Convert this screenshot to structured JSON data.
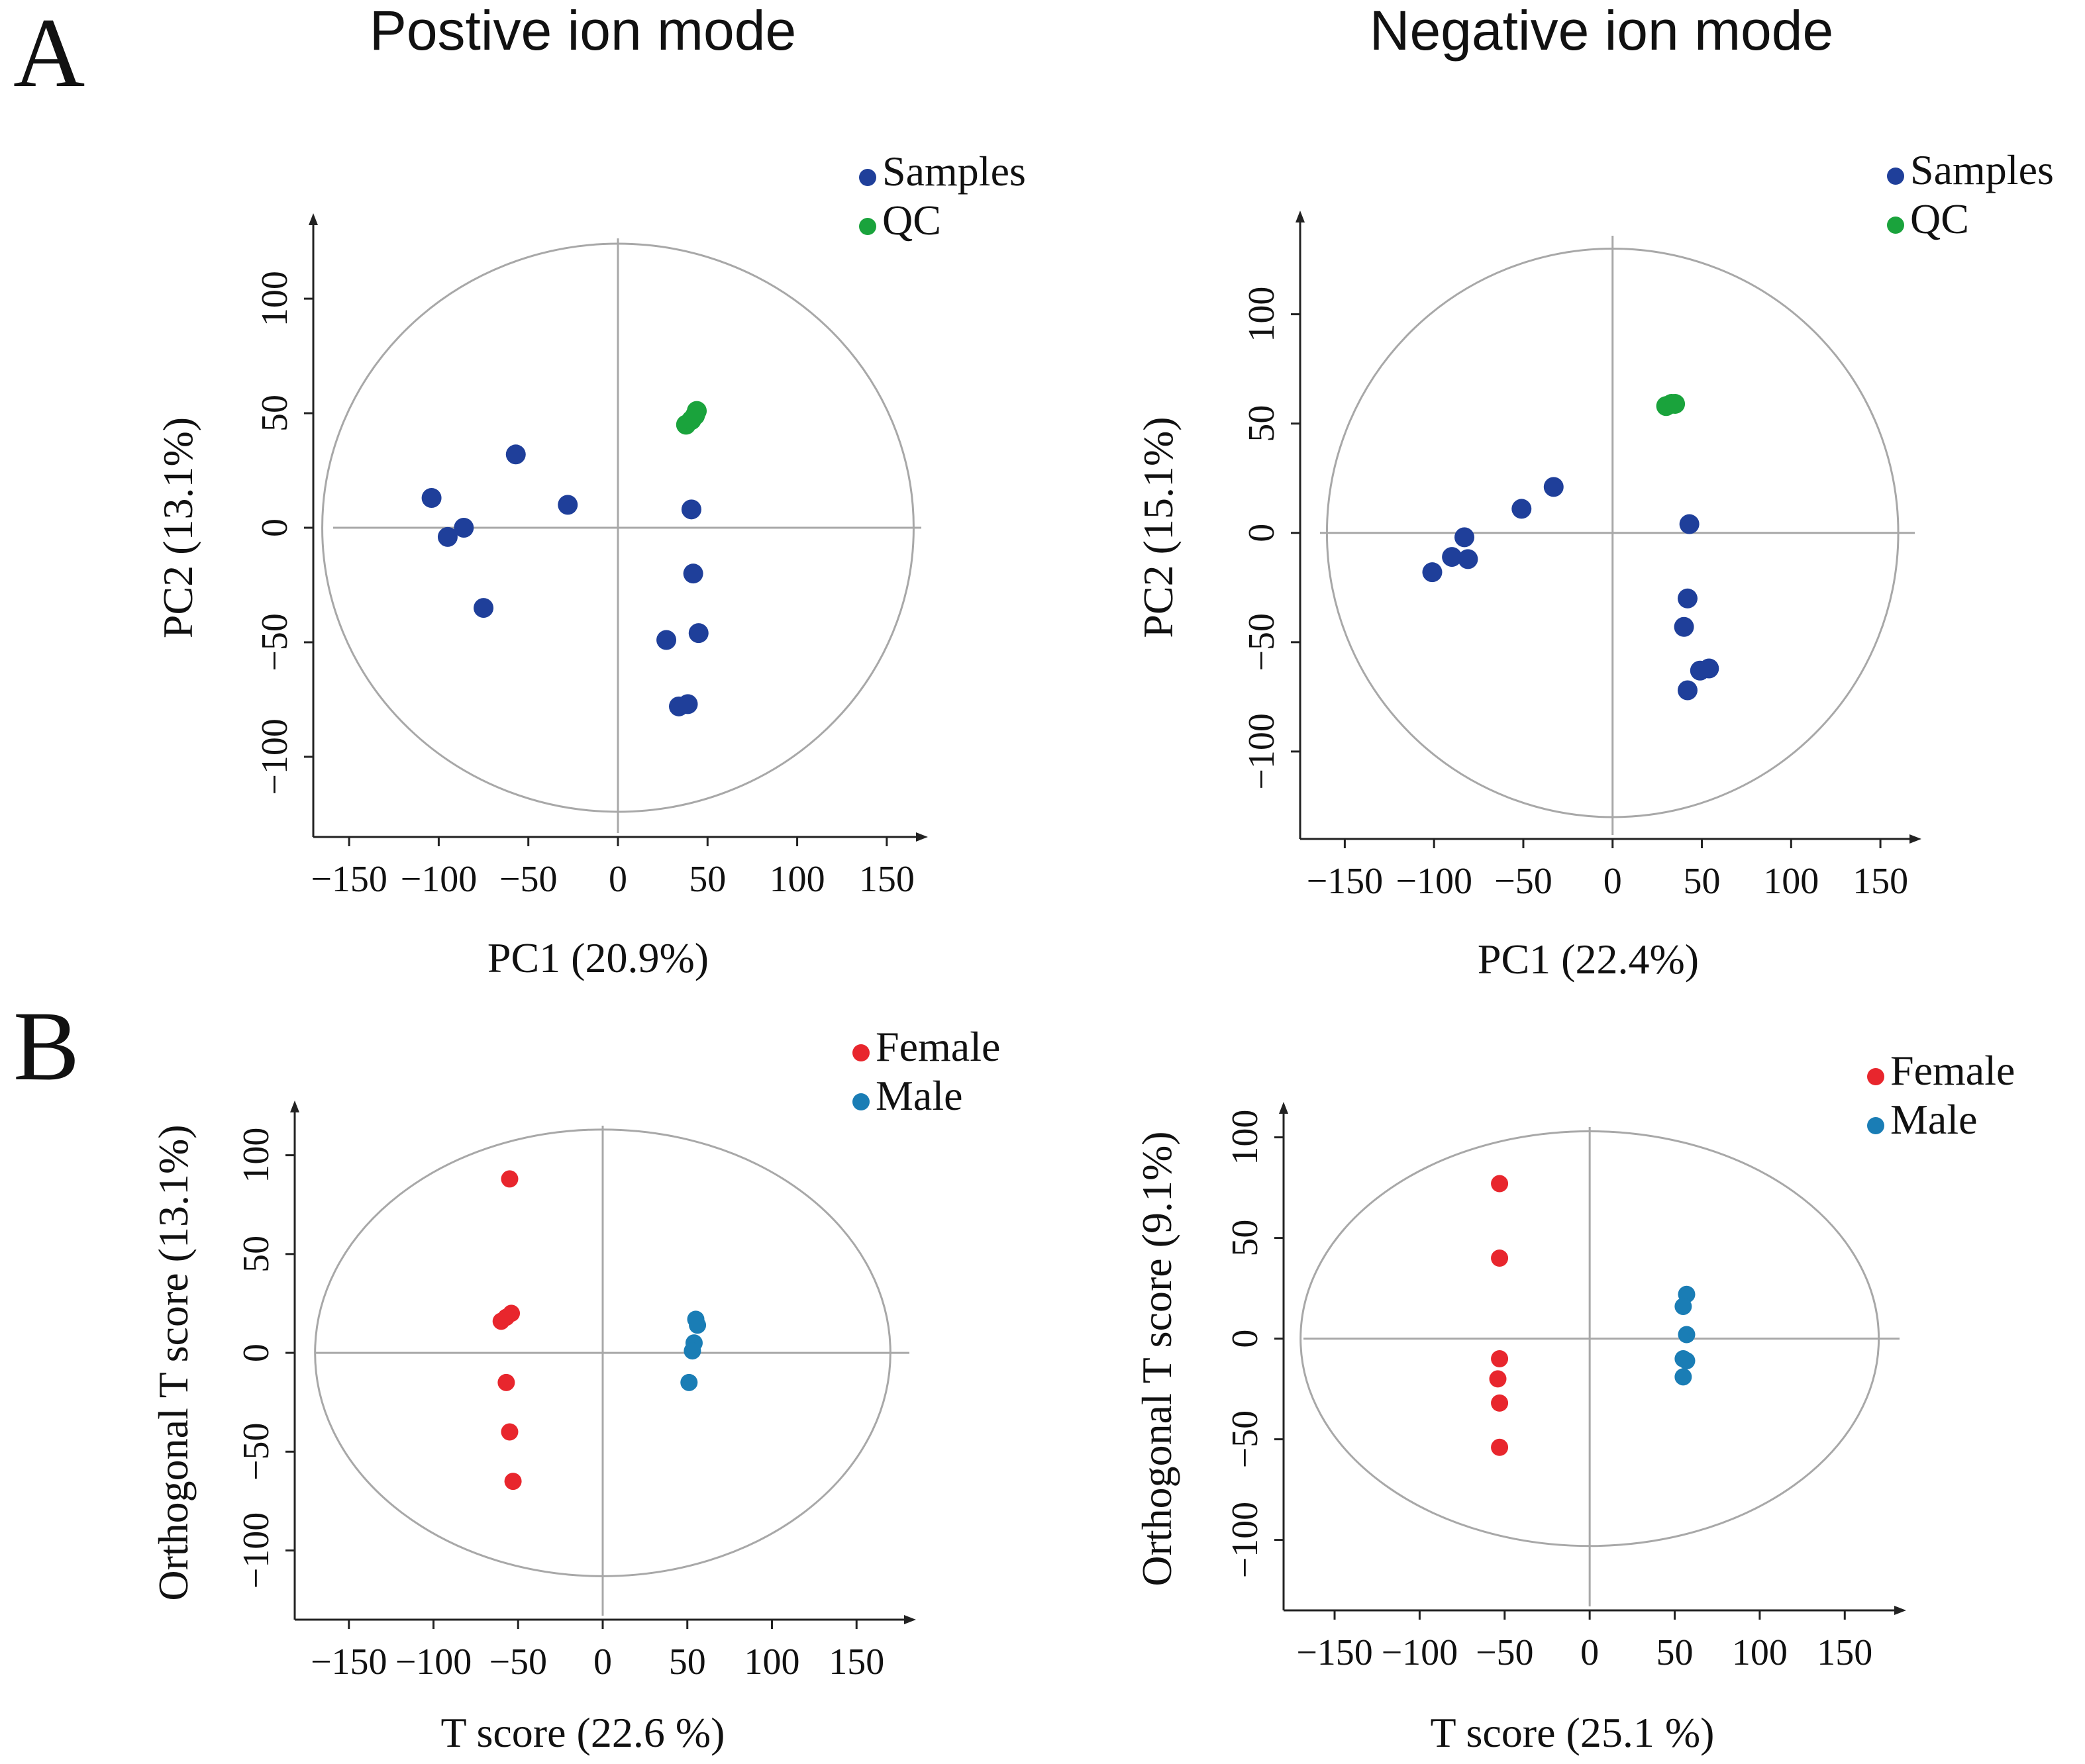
{
  "figure": {
    "panel_A_letter": "A",
    "panel_B_letter": "B",
    "title_left": "Postive ion mode",
    "title_right": "Negative ion mode"
  },
  "colors": {
    "samples": "#1f3f9a",
    "qc": "#1aa33c",
    "female": "#e8262d",
    "male": "#1a7db5",
    "axis": "#222222",
    "guide": "#a8a8a8"
  },
  "chart_data": [
    {
      "id": "A-pos",
      "type": "scatter",
      "xlabel": "PC1 (20.9%)",
      "ylabel": "PC2 (13.1%)",
      "xlim": [
        -170,
        170
      ],
      "ylim": [
        -135,
        135
      ],
      "xticks": [
        -150,
        -100,
        -50,
        0,
        50,
        100,
        150
      ],
      "xtick_labels": [
        "−150",
        "−100",
        "−50",
        "0",
        "50",
        "100",
        "150"
      ],
      "yticks": [
        -100,
        -50,
        0,
        50,
        100
      ],
      "ytick_labels": [
        "−100",
        "−50",
        "0",
        "50",
        "100"
      ],
      "ellipse": {
        "rx": 165,
        "ry": 124
      },
      "legend": {
        "position": "top-right",
        "entries": [
          "Samples",
          "QC"
        ]
      },
      "series": [
        {
          "name": "Samples",
          "color_key": "samples",
          "points": [
            [
              -104,
              13
            ],
            [
              -57,
              32
            ],
            [
              -28,
              10
            ],
            [
              -86,
              0
            ],
            [
              -95,
              -4
            ],
            [
              -75,
              -35
            ],
            [
              41,
              8
            ],
            [
              42,
              -20
            ],
            [
              45,
              -46
            ],
            [
              27,
              -49
            ],
            [
              34,
              -78
            ],
            [
              39,
              -77
            ]
          ]
        },
        {
          "name": "QC",
          "color_key": "qc",
          "points": [
            [
              38,
              45
            ],
            [
              41,
              47
            ],
            [
              43,
              49
            ],
            [
              44,
              51
            ]
          ]
        }
      ]
    },
    {
      "id": "A-neg",
      "type": "scatter",
      "xlabel": "PC1 (22.4%)",
      "ylabel": "PC2 (15.1%)",
      "xlim": [
        -175,
        170
      ],
      "ylim": [
        -140,
        145
      ],
      "xticks": [
        -150,
        -100,
        -50,
        0,
        50,
        100,
        150
      ],
      "xtick_labels": [
        "−150",
        "−100",
        "−50",
        "0",
        "50",
        "100",
        "150"
      ],
      "yticks": [
        -100,
        -50,
        0,
        50,
        100
      ],
      "ytick_labels": [
        "−100",
        "−50",
        "0",
        "50",
        "100"
      ],
      "ellipse": {
        "rx": 160,
        "ry": 130
      },
      "legend": {
        "position": "top-right",
        "entries": [
          "Samples",
          "QC"
        ]
      },
      "series": [
        {
          "name": "Samples",
          "color_key": "samples",
          "points": [
            [
              -101,
              -18
            ],
            [
              -90,
              -11
            ],
            [
              -81,
              -12
            ],
            [
              -83,
              -2
            ],
            [
              -51,
              11
            ],
            [
              -33,
              21
            ],
            [
              43,
              4
            ],
            [
              42,
              -30
            ],
            [
              40,
              -43
            ],
            [
              49,
              -63
            ],
            [
              54,
              -62
            ],
            [
              42,
              -72
            ]
          ]
        },
        {
          "name": "QC",
          "color_key": "qc",
          "points": [
            [
              30,
              58
            ],
            [
              33,
              59
            ],
            [
              35,
              59
            ]
          ]
        }
      ]
    },
    {
      "id": "B-pos",
      "type": "scatter",
      "xlabel": "T score (22.6 %)",
      "ylabel": "Orthogonal T score (13.1%)",
      "xlim": [
        -182,
        182
      ],
      "ylim": [
        -135,
        125
      ],
      "xticks": [
        -150,
        -100,
        -50,
        0,
        50,
        100,
        150
      ],
      "xtick_labels": [
        "−150",
        "−100",
        "−50",
        "0",
        "50",
        "100",
        "150"
      ],
      "yticks": [
        -100,
        -50,
        0,
        50,
        100
      ],
      "ytick_labels": [
        "−100",
        "−50",
        "0",
        "50",
        "100"
      ],
      "ellipse": {
        "rx": 170,
        "ry": 113
      },
      "legend": {
        "position": "top-right",
        "entries": [
          "Female",
          "Male"
        ]
      },
      "series": [
        {
          "name": "Female",
          "color_key": "female",
          "points": [
            [
              -55,
              88
            ],
            [
              -54,
              20
            ],
            [
              -57,
              18
            ],
            [
              -60,
              16
            ],
            [
              -57,
              -15
            ],
            [
              -55,
              -40
            ],
            [
              -53,
              -65
            ]
          ]
        },
        {
          "name": "Male",
          "color_key": "male",
          "points": [
            [
              55,
              17
            ],
            [
              56,
              14
            ],
            [
              54,
              5
            ],
            [
              53,
              1
            ],
            [
              51,
              -15
            ]
          ]
        }
      ]
    },
    {
      "id": "B-neg",
      "type": "scatter",
      "xlabel": "T score (25.1 %)",
      "ylabel": "Orthogonal T score (9.1%)",
      "xlim": [
        -180,
        183
      ],
      "ylim": [
        -135,
        115
      ],
      "xticks": [
        -150,
        -100,
        -50,
        0,
        50,
        100,
        150
      ],
      "xtick_labels": [
        "−150",
        "−100",
        "−50",
        "0",
        "50",
        "100",
        "150"
      ],
      "yticks": [
        -100,
        -50,
        0,
        50,
        100
      ],
      "ytick_labels": [
        "−100",
        "−50",
        "0",
        "50",
        "100"
      ],
      "ellipse": {
        "rx": 170,
        "ry": 103
      },
      "legend": {
        "position": "top-right",
        "entries": [
          "Female",
          "Male"
        ]
      },
      "series": [
        {
          "name": "Female",
          "color_key": "female",
          "points": [
            [
              -53,
              77
            ],
            [
              -53,
              40
            ],
            [
              -53,
              -10
            ],
            [
              -54,
              -20
            ],
            [
              -53,
              -32
            ],
            [
              -53,
              -54
            ]
          ]
        },
        {
          "name": "Male",
          "color_key": "male",
          "points": [
            [
              57,
              22
            ],
            [
              55,
              16
            ],
            [
              57,
              2
            ],
            [
              55,
              -10
            ],
            [
              57,
              -11
            ],
            [
              55,
              -19
            ]
          ]
        }
      ]
    }
  ]
}
